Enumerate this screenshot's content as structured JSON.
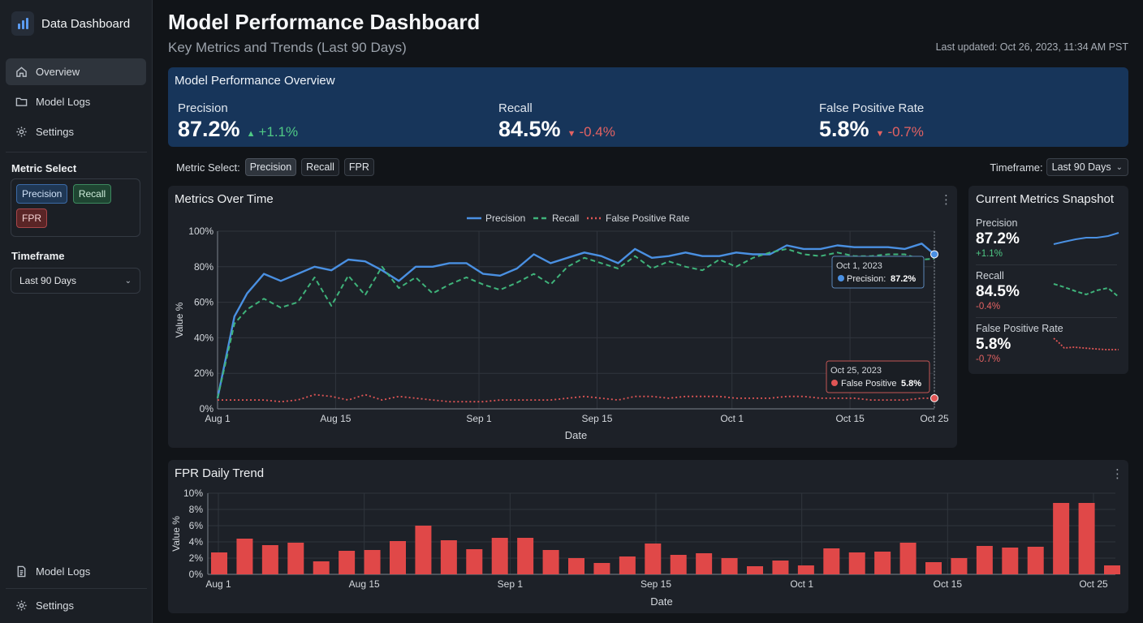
{
  "sidebar": {
    "brand": "Data Dashboard",
    "nav": [
      {
        "label": "Overview",
        "icon": "home-icon",
        "active": true
      },
      {
        "label": "Model Logs",
        "icon": "folder-icon",
        "active": false
      },
      {
        "label": "Settings",
        "icon": "gear-icon",
        "active": false
      }
    ],
    "metric_select_heading": "Metric Select",
    "metric_chips": [
      "Precision",
      "Recall",
      "FPR"
    ],
    "timeframe_heading": "Timeframe",
    "timeframe_value": "Last 90 Days",
    "bottom_nav": [
      {
        "label": "Model Logs",
        "icon": "document-icon"
      },
      {
        "label": "Settings",
        "icon": "gear-icon"
      }
    ]
  },
  "header": {
    "title": "Model Performance Dashboard",
    "subtitle": "Key Metrics and Trends (Last 90 Days)",
    "last_updated": "Last updated: Oct 26, 2023, 11:34 AM PST"
  },
  "overview": {
    "title": "Model Performance Overview",
    "kpis": [
      {
        "label": "Precision",
        "value": "87.2%",
        "delta": "+1.1%",
        "direction": "up"
      },
      {
        "label": "Recall",
        "value": "84.5%",
        "delta": "-0.4%",
        "direction": "down"
      },
      {
        "label": "False Positive Rate",
        "value": "5.8%",
        "delta": "-0.7%",
        "direction": "down"
      }
    ]
  },
  "controls": {
    "metric_select_label": "Metric Select:",
    "metric_buttons": [
      "Precision",
      "Recall",
      "FPR"
    ],
    "timeframe_label": "Timeframe:",
    "timeframe_value": "Last 90 Days"
  },
  "colors": {
    "precision": "#4a90e2",
    "recall": "#3fb37a",
    "fpr": "#e05555",
    "bar": "#e04848"
  },
  "snapshot": {
    "title": "Current Metrics Snapshot",
    "items": [
      {
        "label": "Precision",
        "value": "87.2%",
        "delta": "+1.1%",
        "direction": "up"
      },
      {
        "label": "Recall",
        "value": "84.5%",
        "delta": "-0.4%",
        "direction": "down"
      },
      {
        "label": "False Positive Rate",
        "value": "5.8%",
        "delta": "-0.7%",
        "direction": "down"
      }
    ]
  },
  "chart_data": [
    {
      "type": "line",
      "title": "Metrics Over Time",
      "xlabel": "Date",
      "ylabel": "Value %",
      "x_ticks": [
        "Aug 1",
        "Aug 15",
        "Sep 1",
        "Sep 15",
        "Oct 1",
        "Oct 15",
        "Oct 25"
      ],
      "x_tick_days": [
        0,
        14,
        31,
        45,
        61,
        75,
        85
      ],
      "y_ticks": [
        "0%",
        "20%",
        "40%",
        "60%",
        "80%",
        "100%"
      ],
      "ylim": [
        0,
        100
      ],
      "legend_position": "top-center",
      "x_days": [
        0,
        2,
        3.5,
        5.5,
        7.5,
        9.5,
        11.5,
        13.5,
        15.5,
        17.5,
        19.5,
        21.5,
        23.5,
        25.5,
        27.5,
        29.5,
        31.5,
        33.5,
        35.5,
        37.5,
        39.5,
        41.5,
        43.5,
        45.5,
        47.5,
        49.5,
        51.5,
        53.5,
        55.5,
        57.5,
        59.5,
        61.5,
        63.5,
        65.5,
        67.5,
        69.5,
        71.5,
        73.5,
        75.5,
        77.5,
        79.5,
        81.5,
        83.5,
        85
      ],
      "series": [
        {
          "name": "Precision",
          "style": "solid",
          "values": [
            6,
            52,
            65,
            76,
            72,
            76,
            80,
            78,
            84,
            83,
            78,
            72,
            80,
            80,
            82,
            82,
            76,
            75,
            79,
            87,
            82,
            85,
            88,
            86,
            82,
            90,
            85,
            86,
            88,
            86,
            86,
            88,
            87,
            87,
            92,
            90,
            90,
            92,
            91,
            91,
            91,
            90,
            93,
            87
          ]
        },
        {
          "name": "Recall",
          "style": "dashed",
          "values": [
            6,
            48,
            56,
            62,
            57,
            60,
            74,
            58,
            75,
            64,
            80,
            68,
            74,
            65,
            70,
            74,
            70,
            67,
            71,
            76,
            70,
            80,
            85,
            82,
            79,
            86,
            79,
            83,
            80,
            78,
            84,
            80,
            85,
            88,
            90,
            87,
            86,
            88,
            86,
            86,
            87,
            87,
            84,
            84.5
          ]
        },
        {
          "name": "False Positive Rate",
          "style": "dotted",
          "values": [
            5,
            5,
            5,
            5,
            4,
            5,
            8,
            7,
            5,
            8,
            5,
            7,
            6,
            5,
            4,
            4,
            4,
            5,
            5,
            5,
            5,
            6,
            7,
            6,
            5,
            7,
            7,
            6,
            7,
            7,
            7,
            6,
            6,
            6,
            7,
            7,
            6,
            6,
            6,
            5,
            5,
            5,
            6,
            6
          ]
        }
      ],
      "tooltips": [
        {
          "date": "Oct 1, 2023",
          "label": "Precision:",
          "value": "87.2%"
        },
        {
          "date": "Oct 25, 2023",
          "label": "False Positive",
          "value": "5.8%"
        }
      ]
    },
    {
      "type": "bar",
      "title": "FPR Daily Trend",
      "xlabel": "Date",
      "ylabel": "Value %",
      "x_ticks": [
        "Aug 1",
        "Aug 15",
        "Sep 1",
        "Sep 15",
        "Oct 1",
        "Oct 15",
        "Oct 25"
      ],
      "y_ticks": [
        "0%",
        "2%",
        "4%",
        "6%",
        "8%",
        "10%"
      ],
      "ylim": [
        0,
        10
      ],
      "values": [
        2.7,
        4.4,
        3.6,
        3.9,
        1.6,
        2.9,
        3.0,
        4.1,
        6.0,
        4.2,
        3.1,
        4.5,
        4.5,
        3.0,
        2.0,
        1.4,
        2.2,
        3.8,
        2.4,
        2.6,
        2.0,
        1.0,
        1.7,
        1.1,
        3.2,
        2.7,
        2.8,
        3.9,
        1.5,
        2.0,
        3.5,
        3.3,
        3.4,
        8.8,
        8.8,
        1.1
      ]
    }
  ]
}
